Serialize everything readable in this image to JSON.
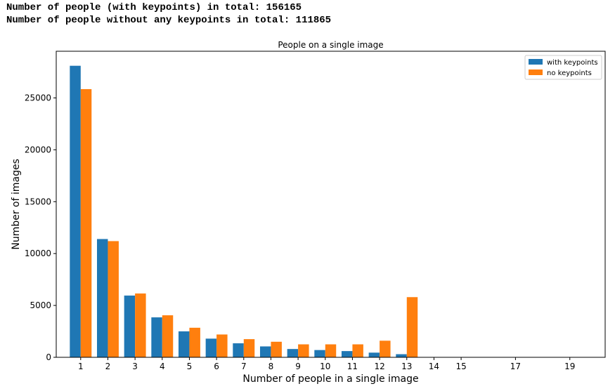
{
  "console": {
    "line1": "Number of people (with keypoints) in total: 156165",
    "line2": "Number of people without any keypoints in total: 111865"
  },
  "chart_data": {
    "type": "bar",
    "title": "People on a single image",
    "xlabel": "Number of people in a single image",
    "ylabel": "Number of images",
    "categories": [
      1,
      2,
      3,
      4,
      5,
      6,
      7,
      8,
      9,
      10,
      11,
      12,
      13,
      14,
      15,
      17,
      19
    ],
    "x_ticks": [
      "1",
      "2",
      "3",
      "4",
      "5",
      "6",
      "7",
      "8",
      "9",
      "10",
      "11",
      "12",
      "13",
      "14",
      "15",
      "17",
      "19"
    ],
    "y_ticks": [
      0,
      5000,
      10000,
      15000,
      20000,
      25000
    ],
    "xlim": [
      0.1,
      20.3
    ],
    "ylim": [
      0,
      29500
    ],
    "grid": false,
    "legend_position": "top-right",
    "series": [
      {
        "name": "with keypoints",
        "color": "#1f77b4",
        "values": [
          28100,
          11400,
          5950,
          3850,
          2500,
          1800,
          1350,
          1050,
          800,
          700,
          600,
          450,
          300,
          0,
          0,
          0,
          0
        ]
      },
      {
        "name": "no keypoints",
        "color": "#ff7f0e",
        "values": [
          25850,
          11200,
          6150,
          4050,
          2850,
          2200,
          1750,
          1500,
          1250,
          1250,
          1250,
          1600,
          5800,
          0,
          0,
          0,
          0
        ]
      }
    ]
  }
}
